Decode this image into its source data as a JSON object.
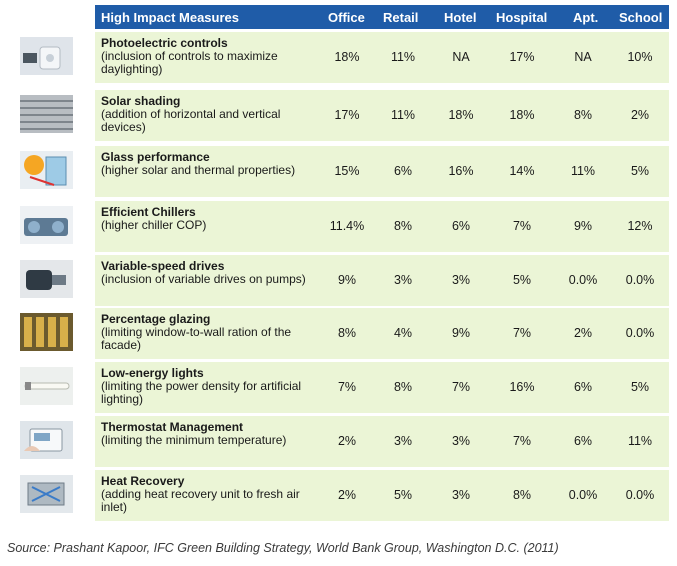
{
  "header": {
    "measure": "High Impact Measures",
    "cols": [
      "Office",
      "Retail",
      "Hotel",
      "Hospital",
      "Apt.",
      "School"
    ]
  },
  "rows": [
    {
      "icon": "photoelectric-sensor-icon",
      "title": "Photoelectric controls",
      "desc": "(inclusion of controls to maximize daylighting)",
      "values": [
        "18%",
        "11%",
        "NA",
        "17%",
        "NA",
        "10%"
      ]
    },
    {
      "icon": "solar-shading-icon",
      "title": "Solar shading",
      "desc": "(addition of horizontal and vertical devices)",
      "values": [
        "17%",
        "11%",
        "18%",
        "18%",
        "8%",
        "2%"
      ]
    },
    {
      "icon": "glass-sun-icon",
      "title": "Glass performance",
      "desc": "(higher solar and thermal properties)",
      "values": [
        "15%",
        "6%",
        "16%",
        "14%",
        "11%",
        "5%"
      ]
    },
    {
      "icon": "chiller-icon",
      "title": "Efficient Chillers",
      "desc": "(higher chiller COP)",
      "values": [
        "11.4%",
        "8%",
        "6%",
        "7%",
        "9%",
        "12%"
      ]
    },
    {
      "icon": "pump-drive-icon",
      "title": "Variable-speed drives",
      "desc": "(inclusion of variable drives on pumps)",
      "values": [
        "9%",
        "3%",
        "3%",
        "5%",
        "0.0%",
        "0.0%"
      ]
    },
    {
      "icon": "glazed-facade-icon",
      "title": "Percentage glazing",
      "desc": "(limiting window-to-wall ration of the facade)",
      "values": [
        "8%",
        "4%",
        "9%",
        "7%",
        "2%",
        "0.0%"
      ]
    },
    {
      "icon": "fluorescent-lamp-icon",
      "title": "Low-energy lights",
      "desc": "(limiting the power density for artificial lighting)",
      "values": [
        "7%",
        "8%",
        "7%",
        "16%",
        "6%",
        "5%"
      ]
    },
    {
      "icon": "thermostat-icon",
      "title": "Thermostat Management",
      "desc": "(limiting the minimum temperature)",
      "values": [
        "2%",
        "3%",
        "3%",
        "7%",
        "6%",
        "11%"
      ]
    },
    {
      "icon": "heat-recovery-unit-icon",
      "title": "Heat Recovery",
      "desc": "(adding heat recovery unit to fresh air inlet)",
      "values": [
        "2%",
        "5%",
        "3%",
        "8%",
        "0.0%",
        "0.0%"
      ]
    }
  ],
  "source": "Source: Prashant Kapoor, IFC Green Building Strategy, World Bank Group, Washington D.C. (2011)"
}
